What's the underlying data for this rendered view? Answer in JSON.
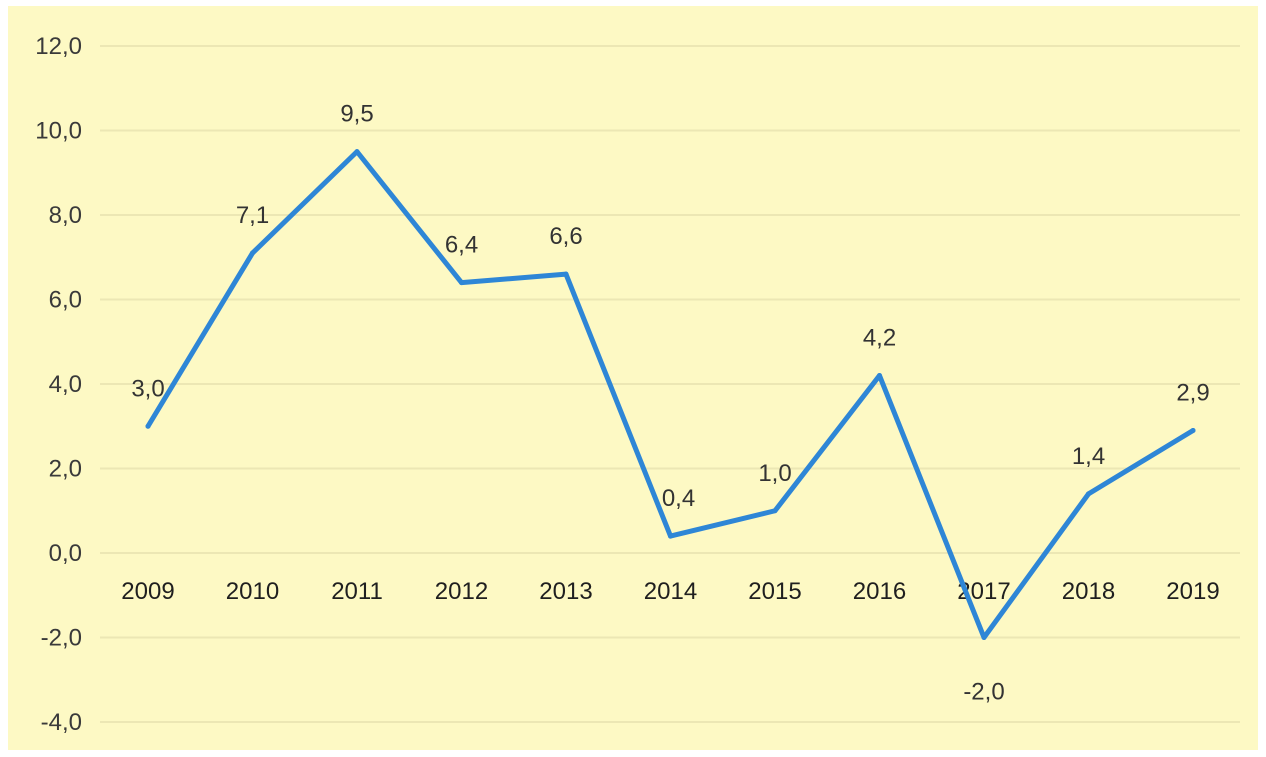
{
  "chart_data": {
    "type": "line",
    "categories": [
      "2009",
      "2010",
      "2011",
      "2012",
      "2013",
      "2014",
      "2015",
      "2016",
      "2017",
      "2018",
      "2019"
    ],
    "series": [
      {
        "values": [
          3.0,
          7.1,
          9.5,
          6.4,
          6.6,
          0.4,
          1.0,
          4.2,
          -2.0,
          1.4,
          2.9
        ],
        "labels": [
          "3,0",
          "7,1",
          "9,5",
          "6,4",
          "6,6",
          "0,4",
          "1,0",
          "4,2",
          "-2,0",
          "1,4",
          "2,9"
        ],
        "color": "#2e86d6"
      }
    ],
    "y_ticks": [
      12,
      10,
      8,
      6,
      4,
      2,
      0,
      -2,
      -4
    ],
    "y_tick_labels": [
      "12,0",
      "10,0",
      "8,0",
      "6,0",
      "4,0",
      "2,0",
      "0,0",
      "-2,0",
      "-4,0"
    ],
    "ylim": [
      -4,
      12
    ],
    "grid": true,
    "background": "#fdf9c4",
    "legend": "none"
  }
}
